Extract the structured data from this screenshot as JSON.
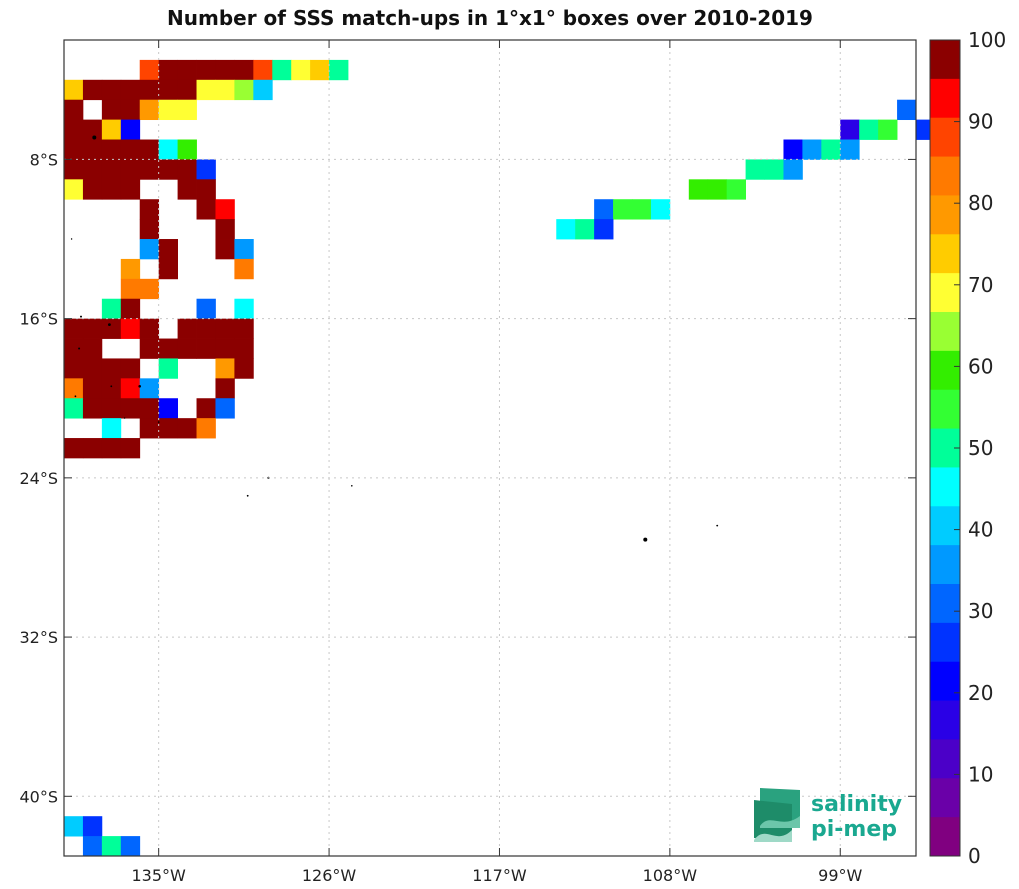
{
  "title": "Number of SSS match-ups in 1°x1° boxes over 2010-2019",
  "logo": {
    "line1": "salinity",
    "line2": "pi-mep"
  },
  "chart_data": {
    "type": "heatmap",
    "title": "Number of SSS match-ups in 1°x1° boxes over 2010-2019",
    "x_axis": {
      "range": [
        -140,
        -95
      ],
      "ticks": [
        -135,
        -126,
        -117,
        -108,
        -99
      ],
      "tick_labels": [
        "135°W",
        "126°W",
        "117°W",
        "108°W",
        "99°W"
      ]
    },
    "y_axis": {
      "range": [
        -43,
        -2
      ],
      "ticks": [
        -8,
        -16,
        -24,
        -32,
        -40
      ],
      "tick_labels": [
        "8°S",
        "16°S",
        "24°S",
        "32°S",
        "40°S"
      ]
    },
    "grid": "dotted",
    "colorbar": {
      "min": 0,
      "max": 100,
      "step": 5,
      "tick_values": [
        0,
        10,
        20,
        30,
        40,
        50,
        60,
        70,
        80,
        90,
        100
      ],
      "tick_labels": [
        "0",
        "10",
        "20",
        "30",
        "40",
        "50",
        "60",
        "70",
        "80",
        "90",
        "100"
      ],
      "colors": [
        "#800080",
        "#6a00a8",
        "#4b00c8",
        "#2a00e6",
        "#0000ff",
        "#0033ff",
        "#0066ff",
        "#0099ff",
        "#00ccff",
        "#00ffff",
        "#00ff99",
        "#33ff33",
        "#33ee00",
        "#99ff33",
        "#ffff33",
        "#ffcc00",
        "#ff9900",
        "#ff7a00",
        "#ff4400",
        "#ff0000",
        "#8b0000"
      ]
    },
    "cells": [
      [
        -136,
        -3,
        90
      ],
      [
        -135,
        -3,
        100
      ],
      [
        -134,
        -3,
        100
      ],
      [
        -133,
        -3,
        100
      ],
      [
        -132,
        -3,
        100
      ],
      [
        -131,
        -3,
        100
      ],
      [
        -130,
        -3,
        90
      ],
      [
        -129,
        -3,
        50
      ],
      [
        -128,
        -3,
        70
      ],
      [
        -127,
        -3,
        75
      ],
      [
        -126,
        -3,
        50
      ],
      [
        -140,
        -4,
        75
      ],
      [
        -139,
        -4,
        100
      ],
      [
        -138,
        -4,
        100
      ],
      [
        -137,
        -4,
        100
      ],
      [
        -136,
        -4,
        100
      ],
      [
        -135,
        -4,
        100
      ],
      [
        -134,
        -4,
        100
      ],
      [
        -133,
        -4,
        70
      ],
      [
        -132,
        -4,
        70
      ],
      [
        -131,
        -4,
        65
      ],
      [
        -130,
        -4,
        40
      ],
      [
        -140,
        -5,
        100
      ],
      [
        -138,
        -5,
        100
      ],
      [
        -137,
        -5,
        100
      ],
      [
        -136,
        -5,
        80
      ],
      [
        -135,
        -5,
        70
      ],
      [
        -134,
        -5,
        70
      ],
      [
        -140,
        -6,
        100
      ],
      [
        -139,
        -6,
        100
      ],
      [
        -138,
        -6,
        75
      ],
      [
        -137,
        -6,
        20
      ],
      [
        -140,
        -7,
        100
      ],
      [
        -139,
        -7,
        100
      ],
      [
        -138,
        -7,
        100
      ],
      [
        -137,
        -7,
        100
      ],
      [
        -136,
        -7,
        100
      ],
      [
        -135,
        -7,
        45
      ],
      [
        -134,
        -7,
        60
      ],
      [
        -140,
        -8,
        100
      ],
      [
        -139,
        -8,
        100
      ],
      [
        -138,
        -8,
        100
      ],
      [
        -137,
        -8,
        100
      ],
      [
        -136,
        -8,
        100
      ],
      [
        -135,
        -8,
        100
      ],
      [
        -134,
        -8,
        100
      ],
      [
        -133,
        -8,
        25
      ],
      [
        -140,
        -9,
        70
      ],
      [
        -139,
        -9,
        100
      ],
      [
        -138,
        -9,
        100
      ],
      [
        -137,
        -9,
        100
      ],
      [
        -134,
        -9,
        100
      ],
      [
        -133,
        -9,
        100
      ],
      [
        -136,
        -10,
        100
      ],
      [
        -133,
        -10,
        100
      ],
      [
        -132,
        -10,
        95
      ],
      [
        -136,
        -11,
        100
      ],
      [
        -132,
        -11,
        100
      ],
      [
        -136,
        -12,
        35
      ],
      [
        -135,
        -12,
        100
      ],
      [
        -132,
        -12,
        100
      ],
      [
        -131,
        -12,
        35
      ],
      [
        -137,
        -13,
        80
      ],
      [
        -135,
        -13,
        100
      ],
      [
        -131,
        -13,
        85
      ],
      [
        -137,
        -14,
        85
      ],
      [
        -136,
        -14,
        85
      ],
      [
        -138,
        -15,
        50
      ],
      [
        -137,
        -15,
        100
      ],
      [
        -133,
        -15,
        30
      ],
      [
        -131,
        -15,
        45
      ],
      [
        -140,
        -16,
        100
      ],
      [
        -139,
        -16,
        100
      ],
      [
        -138,
        -16,
        100
      ],
      [
        -137,
        -16,
        95
      ],
      [
        -136,
        -16,
        100
      ],
      [
        -134,
        -16,
        100
      ],
      [
        -133,
        -16,
        100
      ],
      [
        -132,
        -16,
        100
      ],
      [
        -131,
        -16,
        100
      ],
      [
        -140,
        -17,
        100
      ],
      [
        -139,
        -17,
        100
      ],
      [
        -136,
        -17,
        100
      ],
      [
        -135,
        -17,
        100
      ],
      [
        -134,
        -17,
        100
      ],
      [
        -133,
        -17,
        100
      ],
      [
        -132,
        -17,
        100
      ],
      [
        -131,
        -17,
        100
      ],
      [
        -140,
        -18,
        100
      ],
      [
        -139,
        -18,
        100
      ],
      [
        -138,
        -18,
        100
      ],
      [
        -137,
        -18,
        100
      ],
      [
        -135,
        -18,
        50
      ],
      [
        -132,
        -18,
        80
      ],
      [
        -131,
        -18,
        100
      ],
      [
        -140,
        -19,
        85
      ],
      [
        -139,
        -19,
        100
      ],
      [
        -138,
        -19,
        100
      ],
      [
        -137,
        -19,
        95
      ],
      [
        -136,
        -19,
        35
      ],
      [
        -132,
        -19,
        100
      ],
      [
        -140,
        -20,
        50
      ],
      [
        -139,
        -20,
        100
      ],
      [
        -138,
        -20,
        100
      ],
      [
        -137,
        -20,
        100
      ],
      [
        -136,
        -20,
        100
      ],
      [
        -135,
        -20,
        20
      ],
      [
        -133,
        -20,
        100
      ],
      [
        -132,
        -20,
        30
      ],
      [
        -138,
        -21,
        45
      ],
      [
        -136,
        -21,
        100
      ],
      [
        -135,
        -21,
        100
      ],
      [
        -134,
        -21,
        100
      ],
      [
        -133,
        -21,
        85
      ],
      [
        -140,
        -22,
        100
      ],
      [
        -139,
        -22,
        100
      ],
      [
        -138,
        -22,
        100
      ],
      [
        -137,
        -22,
        100
      ],
      [
        -140,
        -41,
        40
      ],
      [
        -139,
        -41,
        25
      ],
      [
        -139,
        -42,
        30
      ],
      [
        -138,
        -42,
        50
      ],
      [
        -137,
        -42,
        30
      ],
      [
        -96,
        -5,
        30
      ],
      [
        -99,
        -6,
        15
      ],
      [
        -98,
        -6,
        50
      ],
      [
        -97,
        -6,
        55
      ],
      [
        -95,
        -6,
        25
      ],
      [
        -102,
        -7,
        20
      ],
      [
        -101,
        -7,
        35
      ],
      [
        -100,
        -7,
        50
      ],
      [
        -99,
        -7,
        35
      ],
      [
        -104,
        -8,
        50
      ],
      [
        -103,
        -8,
        50
      ],
      [
        -102,
        -8,
        35
      ],
      [
        -107,
        -9,
        60
      ],
      [
        -106,
        -9,
        60
      ],
      [
        -105,
        -9,
        55
      ],
      [
        -112,
        -10,
        30
      ],
      [
        -111,
        -10,
        55
      ],
      [
        -110,
        -10,
        55
      ],
      [
        -109,
        -10,
        45
      ],
      [
        -114,
        -11,
        45
      ],
      [
        -113,
        -11,
        50
      ],
      [
        -112,
        -11,
        25
      ]
    ],
    "land": [
      [
        -138.4,
        -6.9,
        2.2,
        1.4
      ],
      [
        -139.1,
        -15.9,
        1.1,
        0.9
      ],
      [
        -137.6,
        -16.3,
        1.5,
        1.3
      ],
      [
        -139.2,
        -17.5,
        1.1,
        0.9
      ],
      [
        -137.5,
        -19.4,
        1.0,
        0.8
      ],
      [
        -136.0,
        -19.4,
        1.4,
        1.0
      ],
      [
        -139.4,
        -19.9,
        1.0,
        0.8
      ],
      [
        -135.0,
        -21.2,
        0.9,
        0.7
      ],
      [
        -129.2,
        -24.0,
        1.2,
        1.2
      ],
      [
        -130.3,
        -24.9,
        1.0,
        0.9
      ],
      [
        -124.8,
        -24.4,
        0.9,
        0.8
      ],
      [
        -109.3,
        -27.1,
        2.2,
        1.3
      ],
      [
        -105.5,
        -26.4,
        1.0,
        0.8
      ],
      [
        -136.8,
        -21.0,
        0.8,
        0.8
      ],
      [
        -139.6,
        -12.0,
        0.8,
        0.8
      ]
    ]
  }
}
